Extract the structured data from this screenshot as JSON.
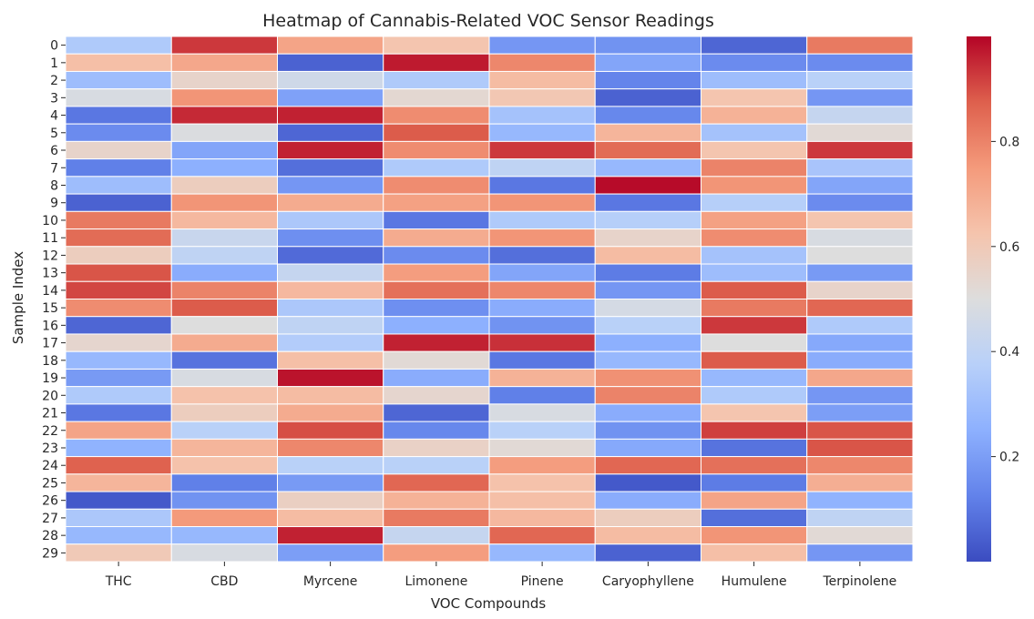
{
  "chart_data": {
    "type": "heatmap",
    "title": "Heatmap of Cannabis-Related VOC Sensor Readings",
    "xlabel": "VOC Compounds",
    "ylabel": "Sample Index",
    "columns": [
      "THC",
      "CBD",
      "Myrcene",
      "Limonene",
      "Pinene",
      "Caryophyllene",
      "Humulene",
      "Terpinolene"
    ],
    "rows": [
      "0",
      "1",
      "2",
      "3",
      "4",
      "5",
      "6",
      "7",
      "8",
      "9",
      "10",
      "11",
      "12",
      "13",
      "14",
      "15",
      "16",
      "17",
      "18",
      "19",
      "20",
      "21",
      "22",
      "23",
      "24",
      "25",
      "26",
      "27",
      "28",
      "29"
    ],
    "values": [
      [
        0.35,
        0.93,
        0.72,
        0.62,
        0.18,
        0.17,
        0.06,
        0.82
      ],
      [
        0.64,
        0.71,
        0.05,
        0.97,
        0.79,
        0.22,
        0.15,
        0.15
      ],
      [
        0.3,
        0.55,
        0.45,
        0.35,
        0.65,
        0.13,
        0.3,
        0.38
      ],
      [
        0.48,
        0.76,
        0.21,
        0.53,
        0.61,
        0.05,
        0.62,
        0.18
      ],
      [
        0.1,
        0.95,
        0.96,
        0.78,
        0.32,
        0.14,
        0.68,
        0.42
      ],
      [
        0.15,
        0.49,
        0.06,
        0.88,
        0.28,
        0.67,
        0.32,
        0.52
      ],
      [
        0.55,
        0.22,
        0.96,
        0.78,
        0.93,
        0.85,
        0.62,
        0.93
      ],
      [
        0.12,
        0.25,
        0.08,
        0.35,
        0.4,
        0.28,
        0.8,
        0.33
      ],
      [
        0.3,
        0.58,
        0.18,
        0.78,
        0.1,
        0.99,
        0.76,
        0.22
      ],
      [
        0.05,
        0.76,
        0.7,
        0.73,
        0.76,
        0.1,
        0.37,
        0.15
      ],
      [
        0.82,
        0.66,
        0.34,
        0.1,
        0.35,
        0.37,
        0.73,
        0.62
      ],
      [
        0.85,
        0.43,
        0.16,
        0.7,
        0.76,
        0.55,
        0.78,
        0.48
      ],
      [
        0.58,
        0.4,
        0.07,
        0.15,
        0.08,
        0.65,
        0.32,
        0.5
      ],
      [
        0.89,
        0.24,
        0.42,
        0.74,
        0.22,
        0.11,
        0.3,
        0.19
      ],
      [
        0.91,
        0.8,
        0.66,
        0.84,
        0.79,
        0.18,
        0.88,
        0.55
      ],
      [
        0.78,
        0.88,
        0.34,
        0.16,
        0.24,
        0.47,
        0.82,
        0.86
      ],
      [
        0.06,
        0.5,
        0.4,
        0.25,
        0.17,
        0.38,
        0.93,
        0.35
      ],
      [
        0.54,
        0.7,
        0.36,
        0.96,
        0.94,
        0.25,
        0.5,
        0.23
      ],
      [
        0.28,
        0.09,
        0.64,
        0.52,
        0.1,
        0.28,
        0.88,
        0.24
      ],
      [
        0.19,
        0.48,
        0.98,
        0.24,
        0.68,
        0.77,
        0.28,
        0.71
      ],
      [
        0.35,
        0.63,
        0.65,
        0.54,
        0.12,
        0.8,
        0.35,
        0.18
      ],
      [
        0.1,
        0.58,
        0.7,
        0.06,
        0.48,
        0.24,
        0.62,
        0.2
      ],
      [
        0.72,
        0.38,
        0.9,
        0.14,
        0.38,
        0.17,
        0.92,
        0.89
      ],
      [
        0.26,
        0.67,
        0.79,
        0.56,
        0.52,
        0.23,
        0.09,
        0.89
      ],
      [
        0.87,
        0.63,
        0.38,
        0.38,
        0.74,
        0.86,
        0.84,
        0.79
      ],
      [
        0.67,
        0.12,
        0.19,
        0.86,
        0.63,
        0.03,
        0.11,
        0.69
      ],
      [
        0.03,
        0.17,
        0.57,
        0.68,
        0.64,
        0.24,
        0.72,
        0.26
      ],
      [
        0.34,
        0.75,
        0.65,
        0.82,
        0.66,
        0.58,
        0.08,
        0.4
      ],
      [
        0.28,
        0.28,
        0.96,
        0.42,
        0.86,
        0.65,
        0.76,
        0.52
      ],
      [
        0.6,
        0.48,
        0.2,
        0.74,
        0.28,
        0.05,
        0.64,
        0.18
      ]
    ],
    "colormap": "coolwarm",
    "colors": {
      "cold": "#3b4cc0",
      "neutral": "#dddddd",
      "hot": "#b40426"
    },
    "vmin": 0.0,
    "vmax": 1.0,
    "colorbar_ticks": [
      "0.2",
      "0.4",
      "0.6",
      "0.8"
    ],
    "grid": true,
    "legend": "colorbar-right"
  }
}
